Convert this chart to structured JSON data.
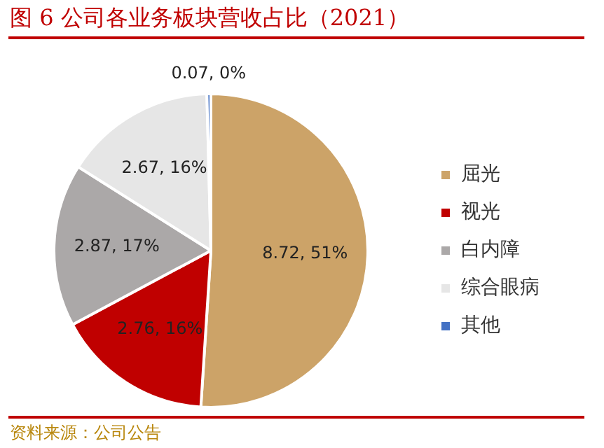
{
  "chart_data": {
    "type": "pie",
    "title": "图 6 公司各业务板块营收占比（2021）",
    "categories": [
      "屈光",
      "视光",
      "白内障",
      "综合眼病",
      "其他"
    ],
    "values": [
      8.72,
      2.76,
      2.87,
      2.67,
      0.07
    ],
    "value_labels": [
      "8.72, 51%",
      "2.76, 16%",
      "2.87, 17%",
      "2.67, 16%",
      "0.07, 0%"
    ],
    "colors": [
      "#cca368",
      "#c00000",
      "#aba8a8",
      "#e6e6e6",
      "#4472c4"
    ],
    "legend": "right",
    "annotations": [
      "资料来源：公司公告"
    ]
  }
}
